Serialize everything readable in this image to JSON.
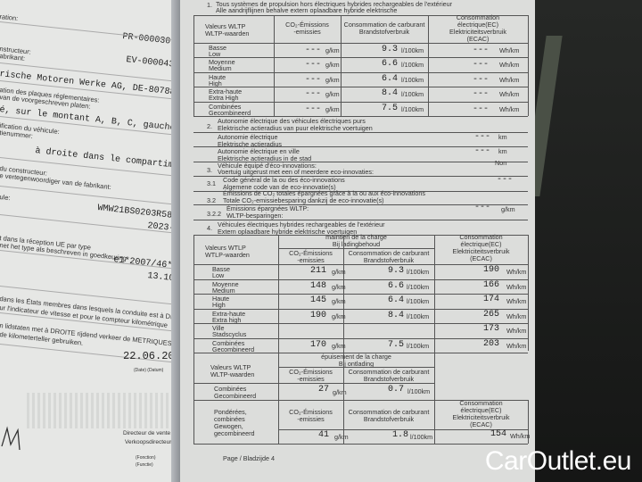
{
  "left_page": {
    "lines": [
      "ration:",
      "PR-000030-WBA-1",
      "nstructeur:",
      "abrikant:",
      "EV-000043-WBA-1",
      "rische Motoren Werke AG, DE-80788 München",
      "ation des plaques réglementaires:",
      "van de voorgeschreven platen:",
      "é, sur le montant A, B, C, gauche ou droit",
      "ification du véhicule:",
      "tienummer:",
      "à droite dans le compartiment moteur",
      "du constructeur:",
      "e vertegenwoordiger van de fabrikant:",
      "ule:",
      "WMW21BS0203R58692",
      "2023-06-21",
      "t dans la réception UE par type",
      "net het type als beschreven in goedkeuring",
      "e1*2007/46*2482*15",
      "13.10.2023",
      "dans les États membres dans lesquels la conduite est à DROITE",
      "ur l'indicateur de vitesse et pour le compteur kilométrique",
      "n lidstaten met à DROITE rijdend verkeer de METRIQUES en",
      "de kilometerteller gebruiken."
    ],
    "date": "22.06.2023",
    "date_label": "(Date) (Datum)",
    "signer_title_fr": "Directeur de vente",
    "signer_title_nl": "Verkoopsdirecteur",
    "function_label": "(Fonction)",
    "function_label_nl": "(Functie)"
  },
  "right_page": {
    "s1_num": "1.",
    "s1_fr": "Tous systèmes de propulsion hors électriques hybrides rechargeables de l'extérieur",
    "s1_nl": "Alle aandrijflijnen behalve extern oplaadbare hybride elektrische",
    "h_wltp": "Valeurs WLTP",
    "h_wltp_nl": "WLTP-waarden",
    "h_co2": "CO₂-Émissions",
    "h_co2_nl": "-emissies",
    "h_fuel": "Consommation de carburant",
    "h_fuel_nl": "Brandstofverbruik",
    "h_ec1": "Consommation",
    "h_ec2": "électrique(EC)",
    "h_ec3": "Elektriciteitsverbruik",
    "h_ec4": "(ECAC)",
    "t1_rows": [
      {
        "fr": "Basse",
        "nl": "Low",
        "co2": "---",
        "fuel": "9.3",
        "ec": "---"
      },
      {
        "fr": "Moyenne",
        "nl": "Medium",
        "co2": "---",
        "fuel": "6.6",
        "ec": "---"
      },
      {
        "fr": "Haute",
        "nl": "High",
        "co2": "---",
        "fuel": "6.4",
        "ec": "---"
      },
      {
        "fr": "Extra-haute",
        "nl": "Extra High",
        "co2": "---",
        "fuel": "8.4",
        "ec": "---"
      },
      {
        "fr": "Combinées",
        "nl": "Gecombineerd",
        "co2": "---",
        "fuel": "7.5",
        "ec": "---"
      }
    ],
    "u_co2": "g/km",
    "u_fuel": "l/100km",
    "u_ec": "Wh/km",
    "u_km": "km",
    "s2_num": "2.",
    "s2_fr": "Autonomie électrique des véhicules électriques purs",
    "s2_nl": "Elektrische actieradius van puur elektrische voertuigen",
    "s2a_fr": "Autonomie électrique",
    "s2a_nl": "Elektrische actieradius",
    "s2a_val": "---",
    "s2b_fr": "Autonomie électrique en ville",
    "s2b_nl": "Elektrische actieradius in de stad",
    "s2b_val": "---",
    "s3_num": "3.",
    "s3_fr": "Véhicule équipé d'éco-innovations:",
    "s3_nl": "Voertuig uitgerust met een of meerdere eco-innovaties:",
    "s3_val": "Non",
    "s31_num": "3.1",
    "s31_fr": "Code général de la ou des éco-innovations",
    "s31_nl": "Algemene code van de eco-innovatie(s)",
    "s31_val": "---",
    "s32_num": "3.2",
    "s32_fr": "Émissions de CO₂ totales épargnées grâce à la ou aux éco-innovations",
    "s32_nl": "Totale CO₂-emissiebesparing dankzij de eco-innovatie(s)",
    "s322_num": "3.2.2",
    "s322_fr": "Émissions épargnées WLTP:",
    "s322_nl": "WLTP-besparingen:",
    "s322_val": "---",
    "s4_num": "4.",
    "s4_fr": "Véhicules électriques hybrides rechargeables de l'extérieur",
    "s4_nl": "Extern oplaadbare hybride elektrische voertuigen",
    "h2_wltp": "Valeurs WTLP",
    "h2_wltp_nl": "WTLP-waarden",
    "h_cs": "maintien de la charge",
    "h_cs_nl": "Bij ladingbehoud",
    "t2_rows": [
      {
        "fr": "Basse",
        "nl": "Low",
        "co2": "211",
        "fuel": "9.3",
        "ec": "190"
      },
      {
        "fr": "Moyenne",
        "nl": "Medium",
        "co2": "148",
        "fuel": "6.6",
        "ec": "166"
      },
      {
        "fr": "Haute",
        "nl": "High",
        "co2": "145",
        "fuel": "6.4",
        "ec": "174"
      },
      {
        "fr": "Extra-haute",
        "nl": "Extra high",
        "co2": "190",
        "fuel": "8.4",
        "ec": "265"
      },
      {
        "fr": "Ville",
        "nl": "Stadscyclus",
        "co2": "",
        "fuel": "",
        "ec": "173"
      },
      {
        "fr": "Combinées",
        "nl": "Gecombineerd",
        "co2": "170",
        "fuel": "7.5",
        "ec": "203"
      }
    ],
    "h_cd": "épuisement de la charge",
    "h_cd_nl": "Bij ontlading",
    "cd_fr": "Combinées",
    "cd_nl": "Gecombineerd",
    "cd_co2": "27",
    "cd_fuel": "0.7",
    "w_fr1": "Pondérées,",
    "w_fr2": "combinées",
    "w_nl1": "Gewogen,",
    "w_nl2": "gecombineerd",
    "w_co2": "41",
    "w_fuel": "1.8",
    "w_ec": "154",
    "page": "Page / Bladzijde 4"
  },
  "watermark": {
    "brand": "CarOutlet",
    "tld": ".eu"
  }
}
